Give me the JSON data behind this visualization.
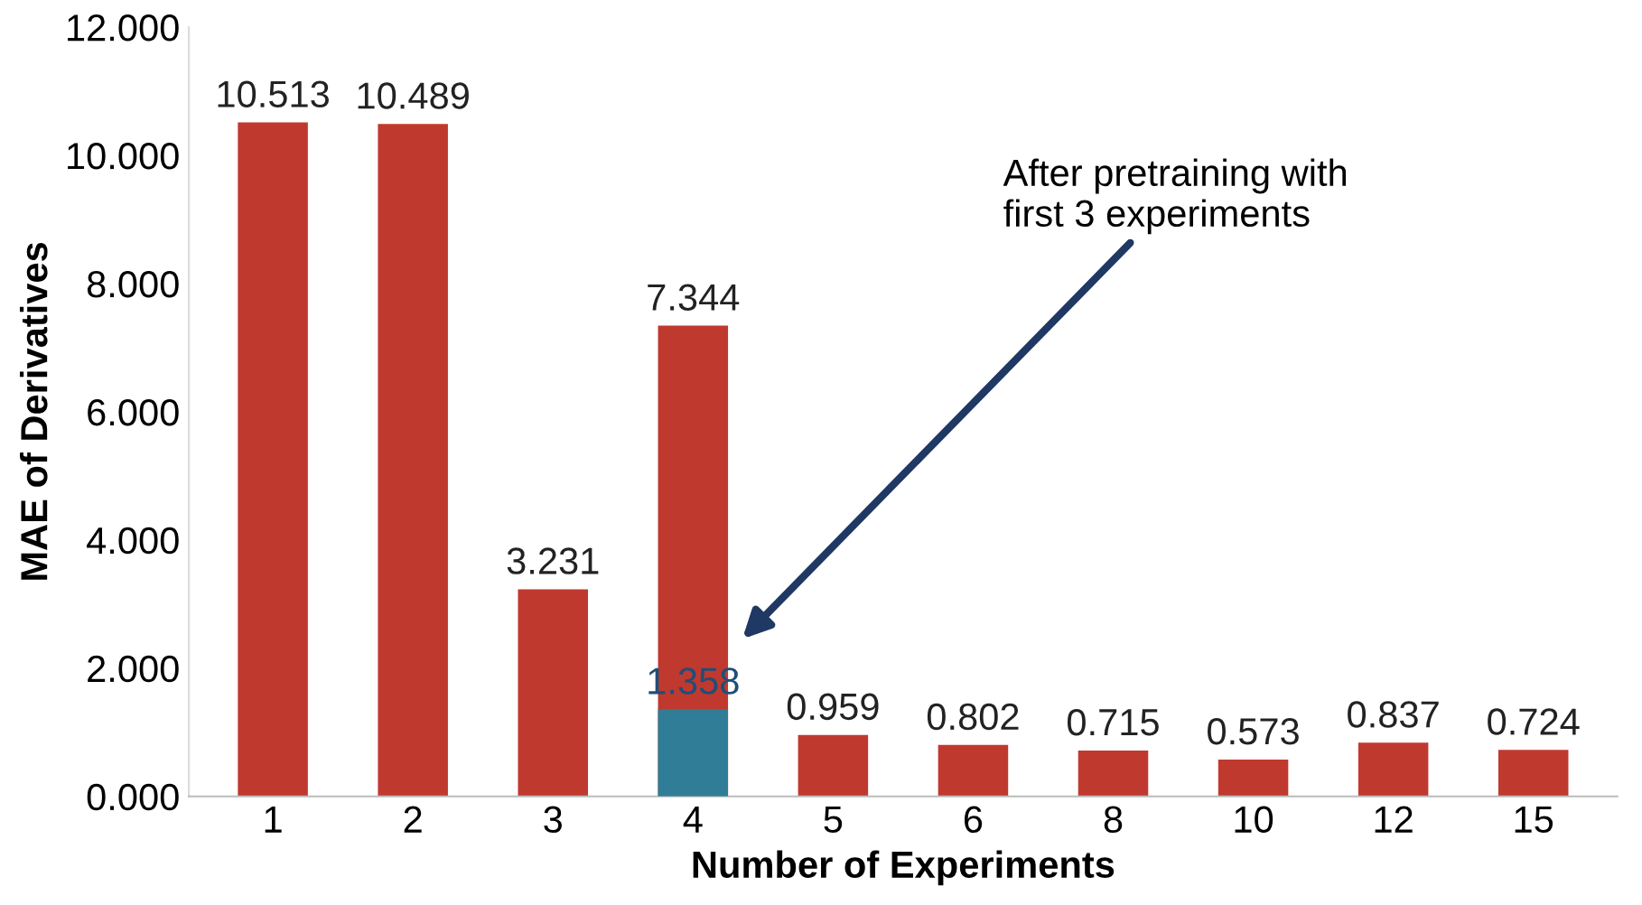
{
  "chart_data": {
    "type": "bar",
    "xlabel": "Number of Experiments",
    "ylabel": "MAE of Derivatives",
    "categories": [
      "1",
      "2",
      "3",
      "4",
      "5",
      "6",
      "8",
      "10",
      "12",
      "15"
    ],
    "series": [
      {
        "color": "#c0392f",
        "values": [
          10.513,
          10.489,
          3.231,
          7.344,
          0.959,
          0.802,
          0.715,
          0.573,
          0.837,
          0.724
        ]
      },
      {
        "color": "#2f7d96",
        "values": [
          null,
          null,
          null,
          1.358,
          null,
          null,
          null,
          null,
          null,
          null
        ]
      }
    ],
    "ylim": [
      0,
      12
    ],
    "yticks": [
      {
        "value": 0,
        "label": "0.000"
      },
      {
        "value": 2,
        "label": "2.000"
      },
      {
        "value": 4,
        "label": "4.000"
      },
      {
        "value": 6,
        "label": "6.000"
      },
      {
        "value": 8,
        "label": "8.000"
      },
      {
        "value": 10,
        "label": "10.000"
      },
      {
        "value": 12,
        "label": "12.000"
      }
    ],
    "data_labels": true,
    "grid": false,
    "legend": false,
    "annotations": [
      "After pretraining with\nfirst 3 experiments"
    ]
  }
}
